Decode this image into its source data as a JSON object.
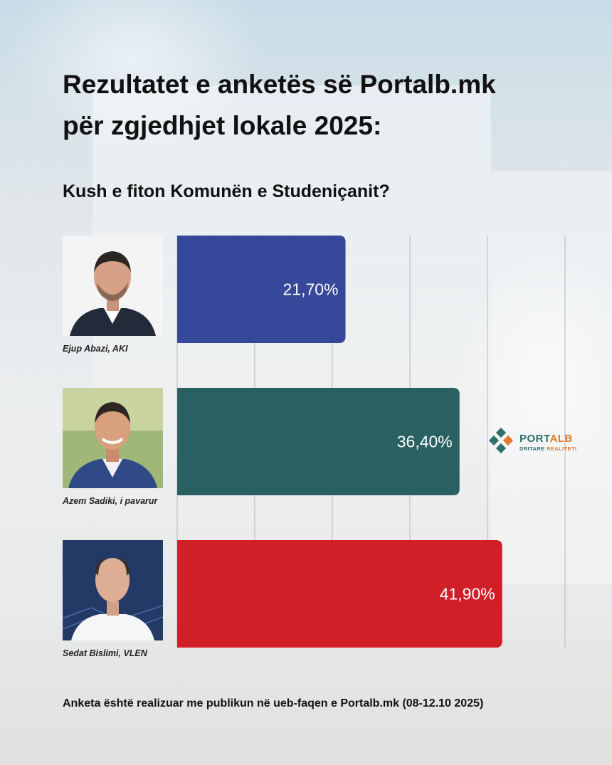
{
  "title_line1": "Rezultatet e anketës së Portalb.mk",
  "title_line2": "për zgjedhjet lokale 2025:",
  "subtitle": "Kush e fiton Komunën e Studeniçanit?",
  "footer": "Anketa është realizuar me publikun në ueb-faqen e Portalb.mk (08-12.10 2025)",
  "logo": {
    "name_part1": "PORT",
    "name_part2": "ALB",
    "tagline_part1": "DRITARE ",
    "tagline_part2": "REALITETI",
    "colors": [
      "#2e6f6b",
      "#e07a2a"
    ]
  },
  "chart_data": {
    "type": "bar",
    "orientation": "horizontal",
    "title": "Kush e fiton Komunën e Studeniçanit?",
    "categories": [
      "Ejup Abazi, AKI",
      "Azem Sadiki, i pavarur",
      "Sedat Bislimi, VLEN"
    ],
    "values": [
      21.7,
      36.4,
      41.9
    ],
    "value_labels": [
      "21,70%",
      "36,40%",
      "41,90%"
    ],
    "colors": [
      "#36489a",
      "#2b6063",
      "#d01f27"
    ],
    "xlim": [
      0,
      50
    ],
    "grid": true,
    "unit": "%"
  },
  "candidates": [
    {
      "label": "Ejup Abazi, AKI",
      "photo_icon": "portrait-photo"
    },
    {
      "label": "Azem Sadiki, i pavarur",
      "photo_icon": "portrait-photo"
    },
    {
      "label": "Sedat Bislimi, VLEN",
      "photo_icon": "portrait-photo"
    }
  ]
}
